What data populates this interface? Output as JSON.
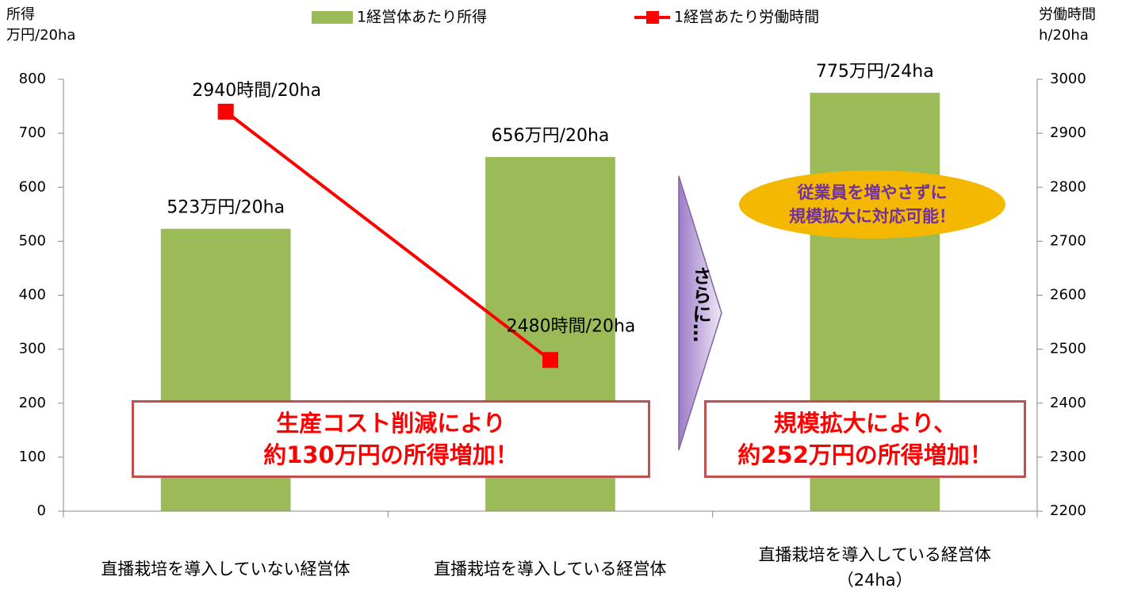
{
  "chart_data": {
    "type": "bar",
    "y_label": "所得\n万円/20ha",
    "y2_label": "労働時間\nh/20ha",
    "categories": [
      "直播栽培を導入していない経営体",
      "直播栽培を導入している経営体",
      "直播栽培を導入している経営体\n（24ha）"
    ],
    "series": [
      {
        "name": "1経営体あたり所得",
        "type": "bar",
        "color": "#9bbb59",
        "values": [
          523,
          656,
          775
        ],
        "value_labels": [
          "523万円/20ha",
          "656万円/20ha",
          "775万円/24ha"
        ]
      },
      {
        "name": "1経営あたり労働時間",
        "type": "line",
        "axis": "y2",
        "color": "#ff0000",
        "values": [
          2940,
          2480,
          null
        ],
        "value_labels": [
          "2940時間/20ha",
          "2480時間/20ha",
          null
        ]
      }
    ],
    "ylim": [
      0,
      800
    ],
    "yticks": [
      0,
      100,
      200,
      300,
      400,
      500,
      600,
      700,
      800
    ],
    "y2lim": [
      2200,
      3000
    ],
    "y2ticks": [
      2200,
      2300,
      2400,
      2500,
      2600,
      2700,
      2800,
      2900,
      3000
    ],
    "legend": "top",
    "annotations": [
      "生産コスト削減により\n約130万円の所得増加！",
      "規模拡大により、\n約252万円の所得増加！",
      "従業員を増やさずに\n規模拡大に対応可能！",
      "さらに…"
    ]
  }
}
